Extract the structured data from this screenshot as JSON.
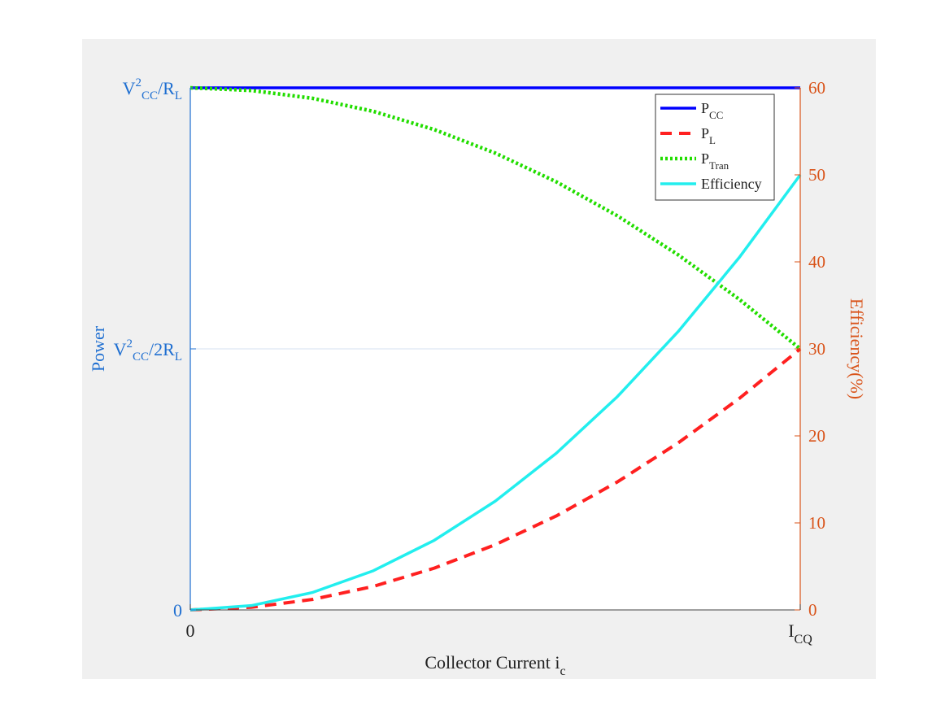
{
  "chart_data": {
    "type": "line",
    "x_ticks": [
      {
        "x": 0,
        "label": "0"
      },
      {
        "x": 1,
        "label": "I",
        "sub": "CQ"
      }
    ],
    "xlim": [
      0,
      1
    ],
    "xlabel": {
      "text": "Collector Current i",
      "sub": "c"
    },
    "ylabel_left": "Power",
    "ylabel_right": "Efficiency(%)",
    "ylim_left": [
      0,
      1
    ],
    "ylim_right": [
      0,
      60
    ],
    "left_ticks": [
      {
        "y": 0,
        "main": "0"
      },
      {
        "y": 0.5,
        "main": "V",
        "sup": "2",
        "sub": "CC",
        "tail": "/2R",
        "tail_sub": "L"
      },
      {
        "y": 1,
        "main": "V",
        "sup": "2",
        "sub": "CC",
        "tail": "/R",
        "tail_sub": "L"
      }
    ],
    "right_ticks": [
      "0",
      "10",
      "20",
      "30",
      "40",
      "50",
      "60"
    ],
    "grid": "horizontal line at left y = 0.5",
    "legend_position": "top-right",
    "series": [
      {
        "name": "P",
        "name_sub": "CC",
        "axis": "left",
        "color": "#0000ff",
        "style": "solid",
        "x": [
          0,
          0.25,
          0.5,
          0.75,
          1
        ],
        "y": [
          1,
          1,
          1,
          1,
          1
        ]
      },
      {
        "name": "P",
        "name_sub": "L",
        "axis": "left",
        "color": "#ff2020",
        "style": "dashed",
        "x": [
          0,
          0.1,
          0.2,
          0.3,
          0.4,
          0.5,
          0.6,
          0.7,
          0.8,
          0.9,
          1
        ],
        "y": [
          0,
          0.005,
          0.02,
          0.045,
          0.08,
          0.125,
          0.18,
          0.245,
          0.32,
          0.405,
          0.5
        ]
      },
      {
        "name": "P",
        "name_sub": "Tran",
        "axis": "left",
        "color": "#22dd00",
        "style": "dotted",
        "x": [
          0,
          0.1,
          0.2,
          0.3,
          0.4,
          0.5,
          0.6,
          0.7,
          0.8,
          0.9,
          1
        ],
        "y": [
          1,
          0.995,
          0.98,
          0.955,
          0.92,
          0.875,
          0.82,
          0.755,
          0.68,
          0.595,
          0.5
        ]
      },
      {
        "name": "Efficiency",
        "axis": "right",
        "color": "#22eeee",
        "style": "solid",
        "x": [
          0,
          0.1,
          0.2,
          0.3,
          0.4,
          0.5,
          0.6,
          0.7,
          0.8,
          0.9,
          1
        ],
        "y": [
          0,
          0.5,
          2,
          4.5,
          8,
          12.5,
          18,
          24.5,
          32,
          40.5,
          50
        ]
      }
    ]
  }
}
